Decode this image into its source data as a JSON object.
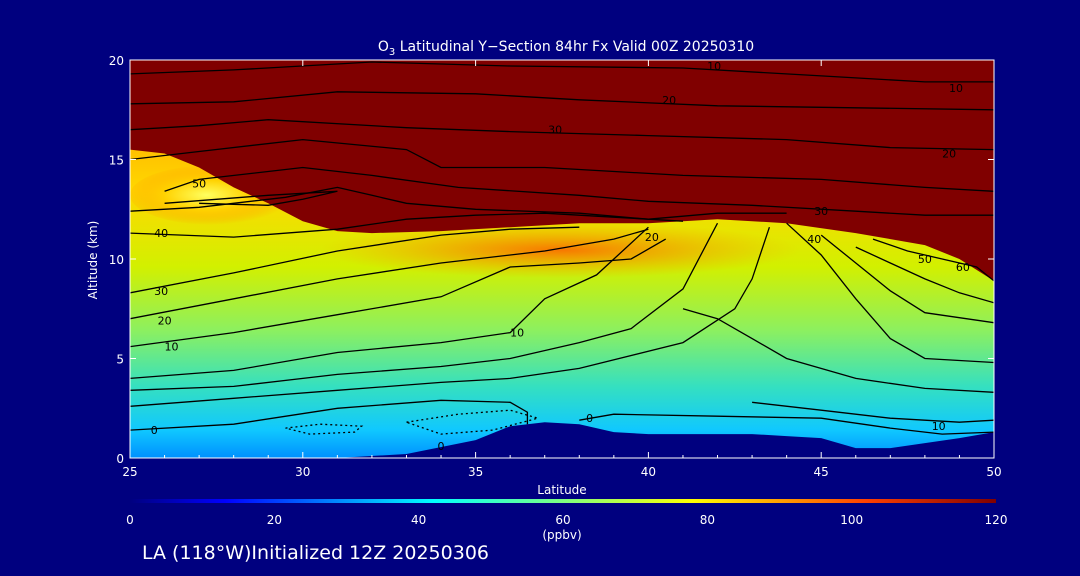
{
  "chart_data": {
    "type": "heatmap",
    "title_prefix": "O",
    "title_subscript": "3",
    "title_rest": " Latitudinal Y−Section 84hr  Fx Valid 00Z 20250310",
    "xlabel": "Latitude",
    "ylabel": "Altitude (km)",
    "xlim": [
      25,
      50
    ],
    "ylim": [
      0,
      20
    ],
    "x_ticks": [
      "25",
      "30",
      "35",
      "40",
      "45",
      "50"
    ],
    "y_ticks": [
      "0",
      "5",
      "10",
      "15",
      "20"
    ],
    "colorbar": {
      "range": [
        0,
        120
      ],
      "ticks": [
        "0",
        "20",
        "40",
        "60",
        "80",
        "100",
        "120"
      ],
      "unit": "(ppbv)"
    },
    "colors": {
      "background": "#00007f",
      "terrain": "#00007f",
      "saturated": "#800000"
    },
    "terrain_top_km": [
      [
        25,
        0
      ],
      [
        31,
        0
      ],
      [
        33,
        0.2
      ],
      [
        35,
        0.9
      ],
      [
        36,
        1.6
      ],
      [
        37,
        1.8
      ],
      [
        38,
        1.7
      ],
      [
        39,
        1.3
      ],
      [
        40,
        1.2
      ],
      [
        43,
        1.2
      ],
      [
        44,
        1.1
      ],
      [
        45,
        1.0
      ],
      [
        46,
        0.5
      ],
      [
        47,
        0.5
      ],
      [
        49,
        1.0
      ],
      [
        50,
        1.3
      ]
    ],
    "tropopause_km": [
      [
        25,
        15.5
      ],
      [
        26,
        15.3
      ],
      [
        27,
        14.6
      ],
      [
        28,
        13.6
      ],
      [
        29,
        12.8
      ],
      [
        30,
        11.9
      ],
      [
        31,
        11.4
      ],
      [
        32,
        11.3
      ],
      [
        34,
        11.4
      ],
      [
        36,
        11.6
      ],
      [
        38,
        11.8
      ],
      [
        40,
        11.8
      ],
      [
        42,
        12.0
      ],
      [
        44,
        11.8
      ],
      [
        46,
        11.3
      ],
      [
        48,
        10.7
      ],
      [
        49,
        10.0
      ],
      [
        50,
        8.9
      ]
    ],
    "contour_labels": [
      {
        "text": "10",
        "lat": 41.9,
        "alt": 19.7
      },
      {
        "text": "20",
        "lat": 40.6,
        "alt": 18.0
      },
      {
        "text": "30",
        "lat": 37.3,
        "alt": 16.5
      },
      {
        "text": "10",
        "lat": 48.9,
        "alt": 18.6
      },
      {
        "text": "20",
        "lat": 48.7,
        "alt": 15.3
      },
      {
        "text": "30",
        "lat": 45.0,
        "alt": 12.4
      },
      {
        "text": "50",
        "lat": 27.0,
        "alt": 13.8
      },
      {
        "text": "40",
        "lat": 25.9,
        "alt": 11.3
      },
      {
        "text": "30",
        "lat": 25.9,
        "alt": 8.4
      },
      {
        "text": "20",
        "lat": 26.0,
        "alt": 6.9
      },
      {
        "text": "10",
        "lat": 26.2,
        "alt": 5.6
      },
      {
        "text": "10",
        "lat": 36.2,
        "alt": 6.3
      },
      {
        "text": "0",
        "lat": 25.7,
        "alt": 1.4
      },
      {
        "text": "0",
        "lat": 34.0,
        "alt": 0.6
      },
      {
        "text": "0",
        "lat": 38.3,
        "alt": 2.0
      },
      {
        "text": "10",
        "lat": 48.4,
        "alt": 1.6
      },
      {
        "text": "20",
        "lat": 40.1,
        "alt": 11.1
      },
      {
        "text": "40",
        "lat": 44.8,
        "alt": 11.0
      },
      {
        "text": "50",
        "lat": 48.0,
        "alt": 10.0
      },
      {
        "text": "60",
        "lat": 49.1,
        "alt": 9.6
      }
    ]
  },
  "footer": {
    "initialized": "LA (118°W)Initialized 12Z 20250306"
  }
}
